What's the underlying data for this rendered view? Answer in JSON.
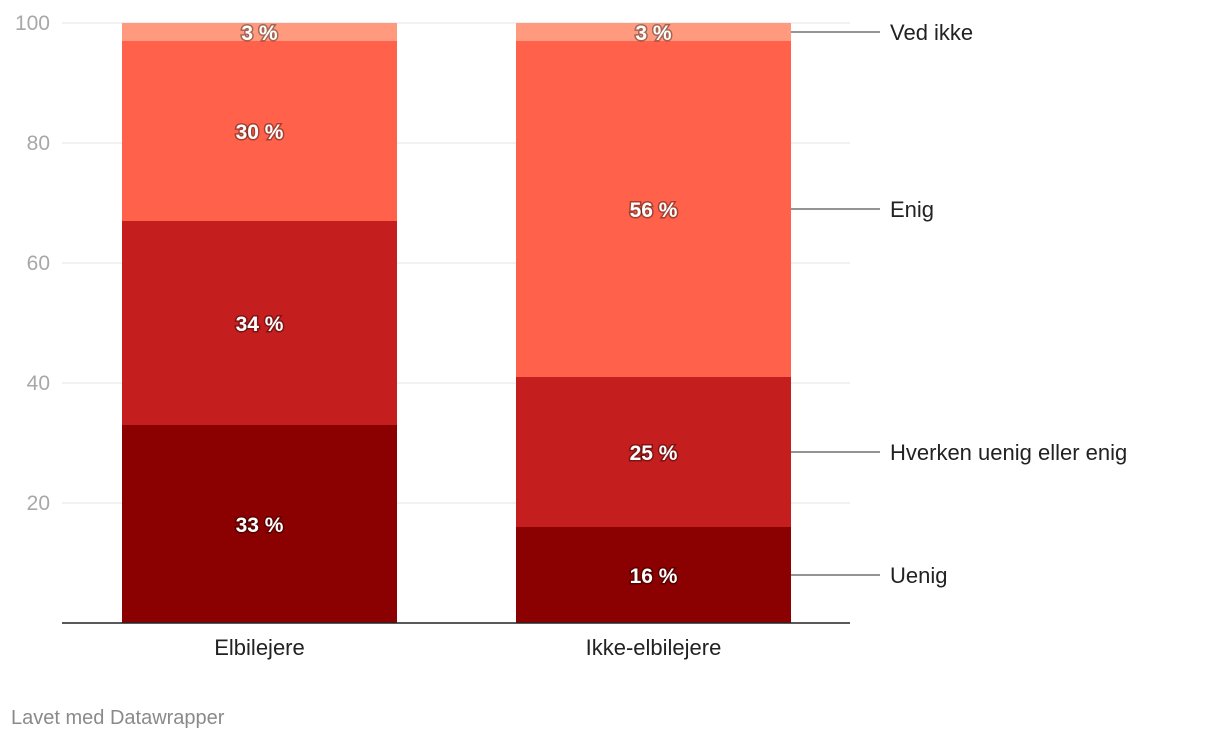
{
  "chart_data": {
    "type": "bar",
    "stacked": true,
    "categories": [
      "Elbilejere",
      "Ikke-elbilejere"
    ],
    "series": [
      {
        "name": "Uenig",
        "values": [
          33,
          16
        ],
        "color": "#8b0000"
      },
      {
        "name": "Hverken uenig eller enig",
        "values": [
          34,
          25
        ],
        "color": "#c41e1e"
      },
      {
        "name": "Enig",
        "values": [
          30,
          56
        ],
        "color": "#ff614a"
      },
      {
        "name": "Ved ikke",
        "values": [
          3,
          3
        ],
        "color": "#ff9a7e"
      }
    ],
    "value_suffix": " %",
    "ylim": [
      0,
      100
    ],
    "yticks": [
      20,
      40,
      60,
      80,
      100
    ],
    "legend": "right, direct labels",
    "grid": true
  },
  "footer": "Lavet med Datawrapper"
}
